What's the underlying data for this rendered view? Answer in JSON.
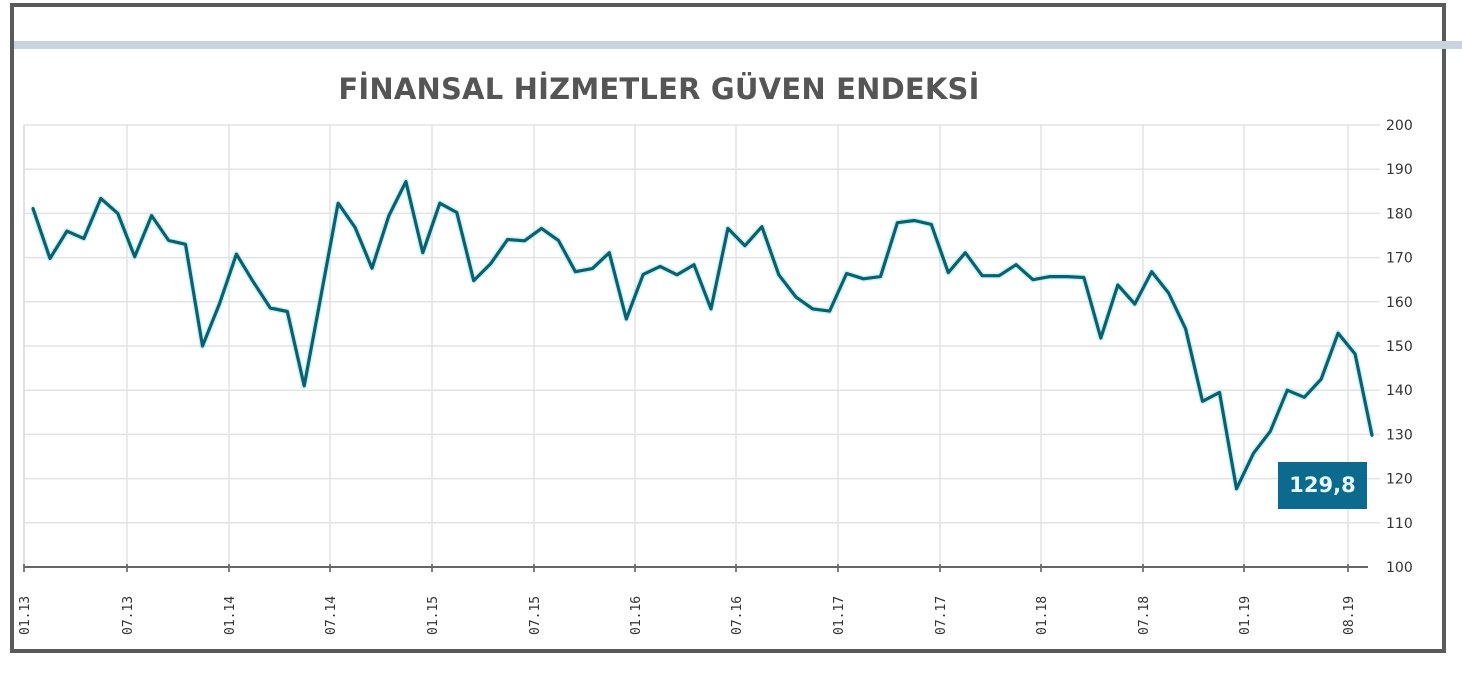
{
  "title": "FİNANSAL HİZMETLER GÜVEN ENDEKSİ",
  "last_value_label": "129,8",
  "colors": {
    "line": "#0d5f6e",
    "line_glow": "#7fe6f0",
    "label_bg": "#0d6a8f",
    "label_text": "#e6fbff",
    "frame": "#5a5a5a",
    "band": "#c9d3df",
    "grid": "#e3e3e3"
  },
  "chart_data": {
    "type": "line",
    "title": "FİNANSAL HİZMETLER GÜVEN ENDEKSİ",
    "xlabel": "",
    "ylabel": "",
    "ylim": [
      100,
      200
    ],
    "yticks": [
      200,
      190,
      180,
      170,
      160,
      150,
      140,
      130,
      120,
      110,
      100
    ],
    "y_axis_position": "right",
    "xtick_labels": [
      "01.13",
      "07.13",
      "01.14",
      "07.14",
      "01.15",
      "07.15",
      "01.16",
      "07.16",
      "01.17",
      "07.17",
      "01.18",
      "07.18",
      "01.19",
      "08.19"
    ],
    "grid": true,
    "legend": null,
    "annotation": {
      "text": "129,8",
      "at": "08.19"
    },
    "series": [
      {
        "name": "Finansal Hizmetler Güven Endeksi",
        "x_start": "01.13",
        "x_end": "08.19",
        "frequency": "monthly",
        "values": [
          181.1,
          169.8,
          176.0,
          174.3,
          183.4,
          180.0,
          170.2,
          179.5,
          173.9,
          173.0,
          150.0,
          159.5,
          170.8,
          164.5,
          158.6,
          157.8,
          141.0,
          161.5,
          182.3,
          176.8,
          167.6,
          179.5,
          187.2,
          171.1,
          182.3,
          180.2,
          164.8,
          168.6,
          174.1,
          173.8,
          176.6,
          173.9,
          166.8,
          167.5,
          171.1,
          156.1,
          166.2,
          168.0,
          166.1,
          168.4,
          158.4,
          176.6,
          172.7,
          177.0,
          166.1,
          161.1,
          158.4,
          157.9,
          166.4,
          165.2,
          165.7,
          177.9,
          178.4,
          177.5,
          166.6,
          171.1,
          165.9,
          165.9,
          168.4,
          165.0,
          165.7,
          165.7,
          165.5,
          151.8,
          163.8,
          159.5,
          166.8,
          162.0,
          153.9,
          137.5,
          139.5,
          117.7,
          125.7,
          130.7,
          140.0,
          138.4,
          142.5,
          152.9,
          148.2,
          129.8
        ]
      }
    ]
  }
}
